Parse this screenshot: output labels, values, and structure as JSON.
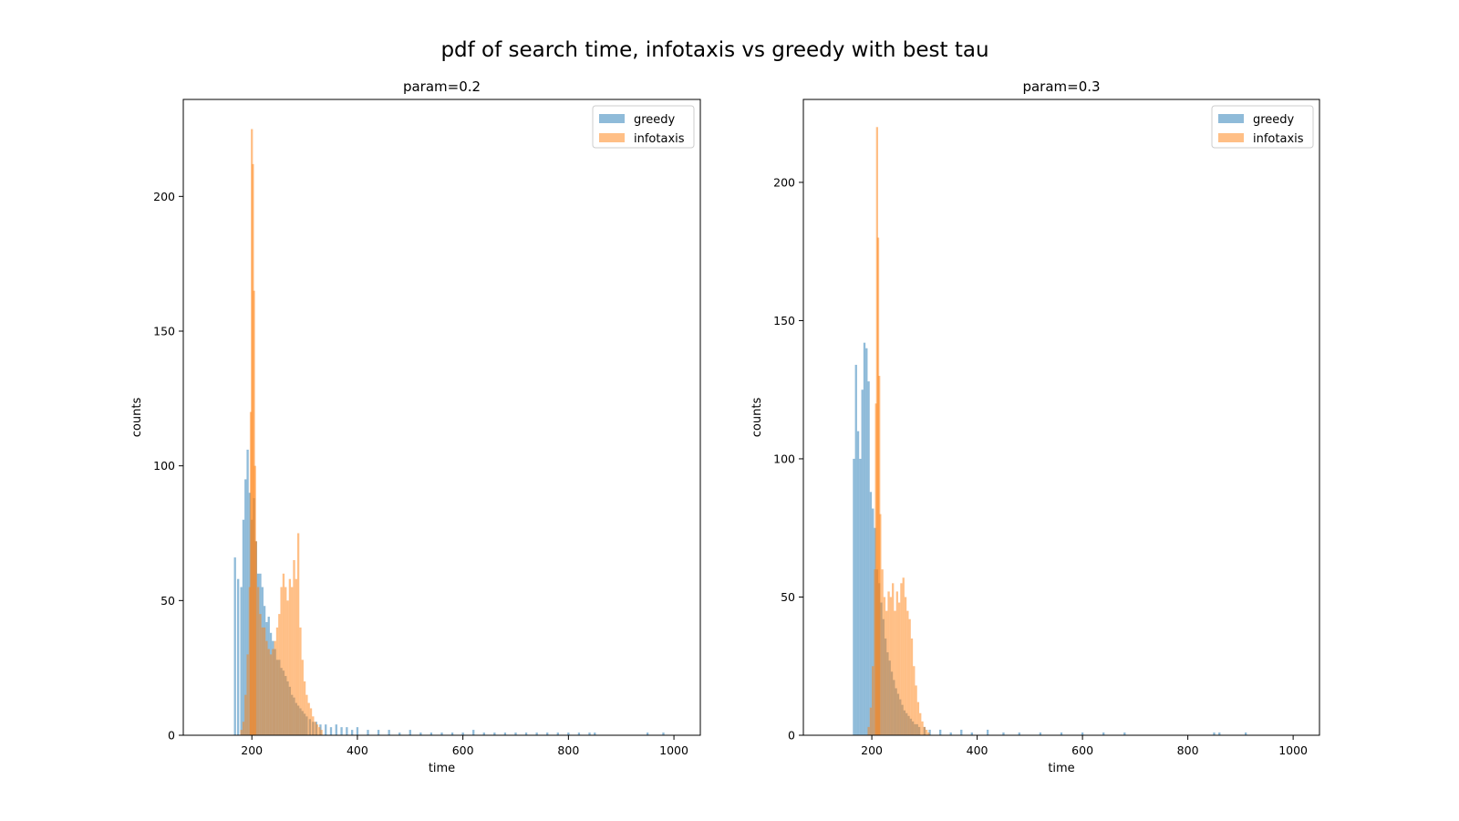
{
  "figure_title": "pdf of search time, infotaxis vs greedy with best tau",
  "colors": {
    "greedy": "#1f77b4",
    "infotaxis": "#ff7f0e",
    "bar_alpha": 0.5
  },
  "chart_data": [
    {
      "type": "bar",
      "histogram": true,
      "title": "param=0.2",
      "xlabel": "time",
      "ylabel": "counts",
      "xlim": [
        70,
        1050
      ],
      "ylim": [
        0,
        236
      ],
      "xticks": [
        200,
        400,
        600,
        800,
        1000
      ],
      "yticks": [
        0,
        50,
        100,
        150,
        200
      ],
      "grid": false,
      "legend_position": "top-right",
      "legend": [
        "greedy",
        "infotaxis"
      ],
      "series": [
        {
          "name": "greedy",
          "color": "#1f77b4",
          "points": [
            [
              168,
              66
            ],
            [
              174,
              58
            ],
            [
              180,
              55
            ],
            [
              184,
              80
            ],
            [
              188,
              95
            ],
            [
              192,
              106
            ],
            [
              196,
              90
            ],
            [
              200,
              80
            ],
            [
              204,
              88
            ],
            [
              208,
              72
            ],
            [
              212,
              60
            ],
            [
              216,
              60
            ],
            [
              220,
              55
            ],
            [
              224,
              48
            ],
            [
              228,
              42
            ],
            [
              232,
              44
            ],
            [
              236,
              38
            ],
            [
              240,
              35
            ],
            [
              244,
              32
            ],
            [
              248,
              28
            ],
            [
              252,
              28
            ],
            [
              256,
              25
            ],
            [
              260,
              24
            ],
            [
              264,
              22
            ],
            [
              268,
              20
            ],
            [
              272,
              18
            ],
            [
              276,
              15
            ],
            [
              280,
              14
            ],
            [
              284,
              12
            ],
            [
              288,
              11
            ],
            [
              292,
              10
            ],
            [
              296,
              9
            ],
            [
              300,
              8
            ],
            [
              304,
              7
            ],
            [
              310,
              6
            ],
            [
              316,
              5
            ],
            [
              322,
              5
            ],
            [
              330,
              4
            ],
            [
              340,
              4
            ],
            [
              350,
              3
            ],
            [
              360,
              4
            ],
            [
              370,
              3
            ],
            [
              380,
              3
            ],
            [
              390,
              2
            ],
            [
              400,
              3
            ],
            [
              420,
              2
            ],
            [
              440,
              2
            ],
            [
              460,
              2
            ],
            [
              480,
              1
            ],
            [
              500,
              2
            ],
            [
              520,
              1
            ],
            [
              540,
              1
            ],
            [
              560,
              1
            ],
            [
              580,
              1
            ],
            [
              600,
              1
            ],
            [
              620,
              2
            ],
            [
              640,
              1
            ],
            [
              660,
              1
            ],
            [
              680,
              1
            ],
            [
              700,
              1
            ],
            [
              720,
              1
            ],
            [
              740,
              1
            ],
            [
              760,
              1
            ],
            [
              780,
              1
            ],
            [
              800,
              1
            ],
            [
              820,
              1
            ],
            [
              840,
              1
            ],
            [
              850,
              1
            ],
            [
              950,
              1
            ],
            [
              980,
              1
            ]
          ]
        },
        {
          "name": "infotaxis",
          "color": "#ff7f0e",
          "points": [
            [
              180,
              2
            ],
            [
              184,
              5
            ],
            [
              188,
              15
            ],
            [
              192,
              30
            ],
            [
              196,
              55
            ],
            [
              198,
              120
            ],
            [
              200,
              225
            ],
            [
              202,
              212
            ],
            [
              204,
              165
            ],
            [
              206,
              100
            ],
            [
              208,
              72
            ],
            [
              212,
              55
            ],
            [
              216,
              45
            ],
            [
              220,
              40
            ],
            [
              224,
              40
            ],
            [
              228,
              35
            ],
            [
              232,
              32
            ],
            [
              236,
              30
            ],
            [
              240,
              32
            ],
            [
              244,
              35
            ],
            [
              248,
              40
            ],
            [
              252,
              45
            ],
            [
              256,
              55
            ],
            [
              260,
              60
            ],
            [
              264,
              55
            ],
            [
              268,
              50
            ],
            [
              272,
              58
            ],
            [
              276,
              55
            ],
            [
              280,
              65
            ],
            [
              284,
              58
            ],
            [
              288,
              75
            ],
            [
              292,
              40
            ],
            [
              296,
              28
            ],
            [
              300,
              20
            ],
            [
              304,
              15
            ],
            [
              308,
              12
            ],
            [
              312,
              10
            ],
            [
              316,
              7
            ],
            [
              320,
              5
            ],
            [
              324,
              4
            ],
            [
              328,
              3
            ],
            [
              332,
              2
            ]
          ]
        }
      ]
    },
    {
      "type": "bar",
      "histogram": true,
      "title": "param=0.3",
      "xlabel": "time",
      "ylabel": "counts",
      "xlim": [
        70,
        1050
      ],
      "ylim": [
        0,
        230
      ],
      "xticks": [
        200,
        400,
        600,
        800,
        1000
      ],
      "yticks": [
        0,
        50,
        100,
        150,
        200
      ],
      "grid": false,
      "legend_position": "top-right",
      "legend": [
        "greedy",
        "infotaxis"
      ],
      "series": [
        {
          "name": "greedy",
          "color": "#1f77b4",
          "points": [
            [
              166,
              100
            ],
            [
              170,
              134
            ],
            [
              174,
              110
            ],
            [
              178,
              100
            ],
            [
              182,
              125
            ],
            [
              186,
              142
            ],
            [
              190,
              140
            ],
            [
              194,
              128
            ],
            [
              198,
              88
            ],
            [
              202,
              82
            ],
            [
              206,
              75
            ],
            [
              210,
              60
            ],
            [
              214,
              55
            ],
            [
              218,
              48
            ],
            [
              222,
              42
            ],
            [
              226,
              35
            ],
            [
              230,
              30
            ],
            [
              234,
              27
            ],
            [
              238,
              23
            ],
            [
              242,
              20
            ],
            [
              246,
              17
            ],
            [
              250,
              15
            ],
            [
              254,
              13
            ],
            [
              258,
              11
            ],
            [
              262,
              9
            ],
            [
              266,
              8
            ],
            [
              270,
              7
            ],
            [
              274,
              6
            ],
            [
              278,
              5
            ],
            [
              282,
              4
            ],
            [
              286,
              4
            ],
            [
              290,
              3
            ],
            [
              300,
              3
            ],
            [
              310,
              2
            ],
            [
              330,
              2
            ],
            [
              350,
              1
            ],
            [
              370,
              2
            ],
            [
              390,
              1
            ],
            [
              420,
              2
            ],
            [
              450,
              1
            ],
            [
              480,
              1
            ],
            [
              520,
              1
            ],
            [
              560,
              1
            ],
            [
              600,
              1
            ],
            [
              640,
              1
            ],
            [
              680,
              1
            ],
            [
              850,
              1
            ],
            [
              860,
              1
            ],
            [
              910,
              1
            ]
          ]
        },
        {
          "name": "infotaxis",
          "color": "#ff7f0e",
          "points": [
            [
              194,
              3
            ],
            [
              198,
              10
            ],
            [
              202,
              25
            ],
            [
              206,
              60
            ],
            [
              208,
              120
            ],
            [
              210,
              220
            ],
            [
              212,
              180
            ],
            [
              214,
              130
            ],
            [
              216,
              80
            ],
            [
              220,
              60
            ],
            [
              224,
              50
            ],
            [
              228,
              45
            ],
            [
              232,
              52
            ],
            [
              236,
              50
            ],
            [
              240,
              55
            ],
            [
              244,
              45
            ],
            [
              248,
              52
            ],
            [
              252,
              48
            ],
            [
              256,
              55
            ],
            [
              260,
              57
            ],
            [
              264,
              50
            ],
            [
              268,
              45
            ],
            [
              272,
              42
            ],
            [
              276,
              35
            ],
            [
              280,
              25
            ],
            [
              284,
              18
            ],
            [
              288,
              12
            ],
            [
              292,
              8
            ],
            [
              296,
              5
            ],
            [
              300,
              3
            ],
            [
              304,
              2
            ],
            [
              308,
              1
            ]
          ]
        }
      ]
    }
  ]
}
